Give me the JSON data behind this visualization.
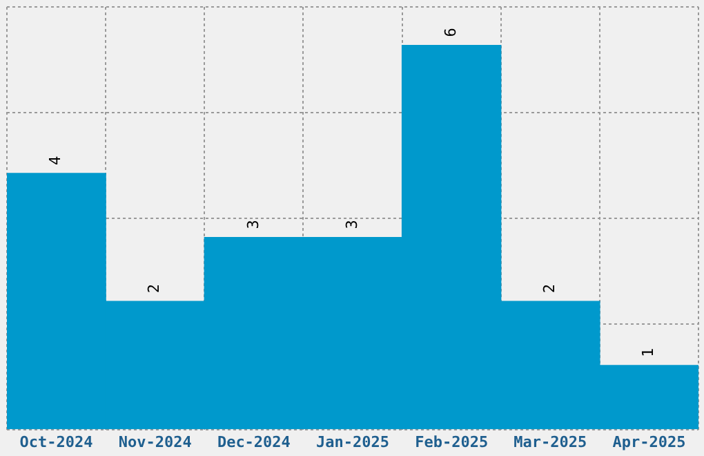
{
  "chart_data": {
    "type": "bar",
    "categories": [
      "Oct-2024",
      "Nov-2024",
      "Dec-2024",
      "Jan-2025",
      "Feb-2025",
      "Mar-2025",
      "Apr-2025"
    ],
    "values": [
      4,
      2,
      3,
      3,
      6,
      2,
      1
    ],
    "color": "#0099cc",
    "data_labels": true,
    "grid": true,
    "tick_labels": "x",
    "ylim": [
      0,
      6.6
    ],
    "yticks": [
      {
        "value": 0,
        "label": null
      },
      {
        "value": 1.65,
        "label": null
      },
      {
        "value": 3.3,
        "label": null
      },
      {
        "value": 4.95,
        "label": null
      },
      {
        "value": 6.6,
        "label": null
      }
    ]
  }
}
